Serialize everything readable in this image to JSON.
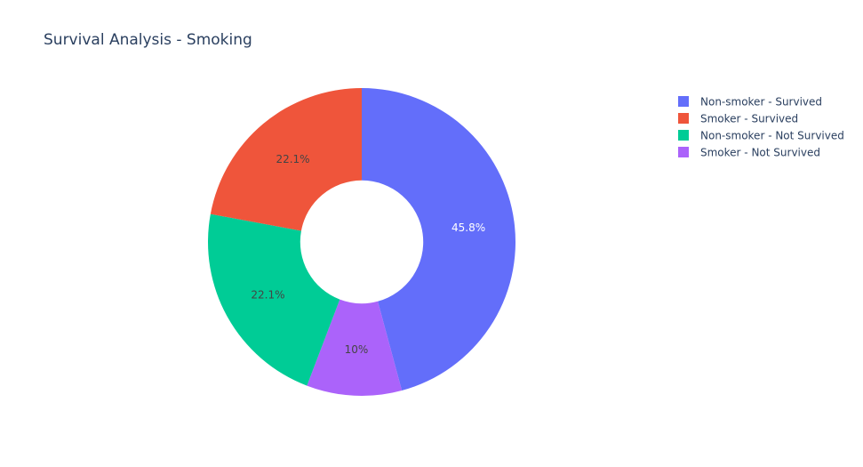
{
  "chart_data": {
    "type": "pie",
    "title": "Survival Analysis - Smoking",
    "hole": 0.4,
    "legend_position": "top-right",
    "labels": [
      "Non-smoker - Survived",
      "Smoker - Survived",
      "Non-smoker - Not Survived",
      "Smoker - Not Survived"
    ],
    "values": [
      45.8,
      22.1,
      22.1,
      10
    ],
    "percent_labels": [
      "45.8%",
      "22.1%",
      "22.1%",
      "10%"
    ],
    "colors": [
      "#636efa",
      "#ef553b",
      "#00cc96",
      "#ab63fa"
    ],
    "label_colors": [
      "#ffffff",
      "#444444",
      "#444444",
      "#444444"
    ],
    "slice_order": [
      0,
      3,
      2,
      1
    ]
  }
}
